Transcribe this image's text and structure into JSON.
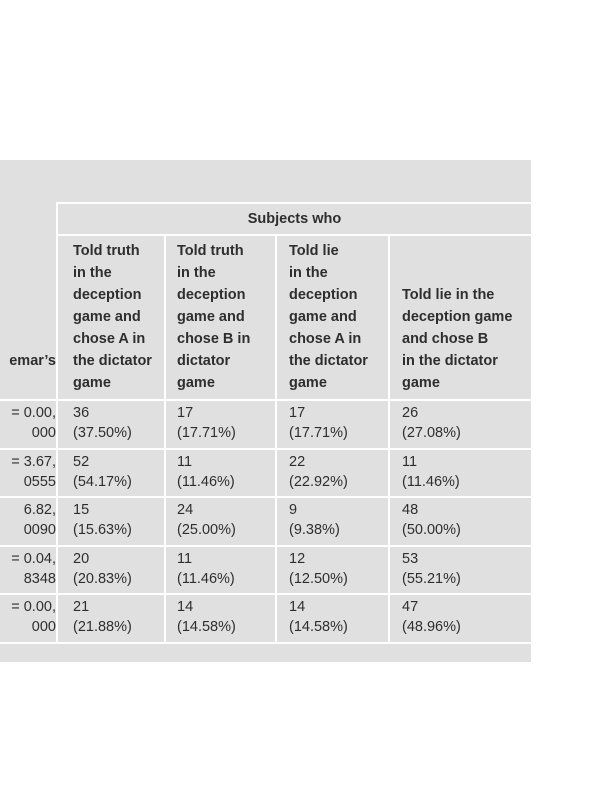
{
  "table": {
    "group_header": "Subjects who",
    "left_header": "emar’s",
    "headers": [
      [
        "Told truth",
        "in the",
        "deception",
        "game and",
        "chose A in",
        "the dictator",
        "game"
      ],
      [
        "Told truth",
        "in the",
        "deception",
        "game and",
        "chose B in",
        "dictator",
        "game"
      ],
      [
        "Told lie",
        "in the",
        "deception",
        "game and",
        "chose A in",
        "the dictator",
        "game"
      ],
      [
        "Told lie in the",
        "deception game",
        "and chose B",
        "in the dictator",
        "game"
      ]
    ],
    "rows": [
      {
        "left": [
          "= 0.00,",
          "000"
        ],
        "cells": [
          [
            "36",
            "(37.50%)"
          ],
          [
            "17",
            "(17.71%)"
          ],
          [
            "17",
            "(17.71%)"
          ],
          [
            "26",
            "(27.08%)"
          ]
        ]
      },
      {
        "left": [
          "= 3.67,",
          "0555"
        ],
        "cells": [
          [
            "52",
            "(54.17%)"
          ],
          [
            "11",
            "(11.46%)"
          ],
          [
            "22",
            "(22.92%)"
          ],
          [
            "11",
            "(11.46%)"
          ]
        ]
      },
      {
        "left": [
          "6.82,",
          "0090"
        ],
        "cells": [
          [
            "15",
            "(15.63%)"
          ],
          [
            "24",
            "(25.00%)"
          ],
          [
            "9",
            "(9.38%)"
          ],
          [
            "48",
            "(50.00%)"
          ]
        ]
      },
      {
        "left": [
          "= 0.04,",
          "8348"
        ],
        "cells": [
          [
            "20",
            "(20.83%)"
          ],
          [
            "11",
            "(11.46%)"
          ],
          [
            "12",
            "(12.50%)"
          ],
          [
            "53",
            "(55.21%)"
          ]
        ]
      },
      {
        "left": [
          "= 0.00,",
          "000"
        ],
        "cells": [
          [
            "21",
            "(21.88%)"
          ],
          [
            "14",
            "(14.58%)"
          ],
          [
            "14",
            "(14.58%)"
          ],
          [
            "47",
            "(48.96%)"
          ]
        ]
      }
    ]
  }
}
